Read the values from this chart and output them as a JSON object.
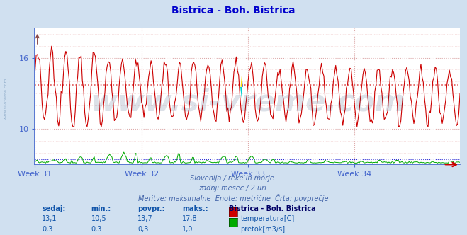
{
  "title": "Bistrica - Boh. Bistrica",
  "title_color": "#0000cc",
  "title_fontsize": 10,
  "bg_color": "#d0e0f0",
  "plot_bg_color": "#ffffff",
  "grid_color": "#ddaaaa",
  "grid_color_blue": "#aaaadd",
  "temp_color": "#cc0000",
  "flow_color": "#00aa00",
  "avg_temp_color": "#dd4444",
  "avg_flow_color": "#0000cc",
  "spine_color": "#4466cc",
  "arrow_color": "#cc0000",
  "xlabel_weeks": [
    "Week 31",
    "Week 32",
    "Week 33",
    "Week 34"
  ],
  "yticks": [
    10,
    16
  ],
  "temp_avg": 13.7,
  "temp_min_val": 10.5,
  "temp_max_val": 17.8,
  "temp_current": 13.1,
  "flow_avg": 0.3,
  "flow_min_val": 0.3,
  "flow_max_val": 1.0,
  "flow_current": 0.3,
  "watermark_text": "www.si-vreme.com",
  "watermark_color": "#1a3a6a",
  "watermark_alpha": 0.15,
  "watermark_fontsize": 30,
  "info_line1": "Slovenija / reke in morje.",
  "info_line2": "zadnji mesec / 2 uri.",
  "info_line3": "Meritve: maksimalne  Enote: metrične  Črta: povprečje",
  "info_color": "#4466aa",
  "legend_title": "Bistrica - Boh. Bistrica",
  "legend_title_color": "#000066",
  "label_color": "#1155aa",
  "left_text": "www.si-vreme.com",
  "n_points": 360,
  "y_min": 7.0,
  "y_max": 18.5,
  "tick_fontsize": 8,
  "week_fontsize": 8
}
